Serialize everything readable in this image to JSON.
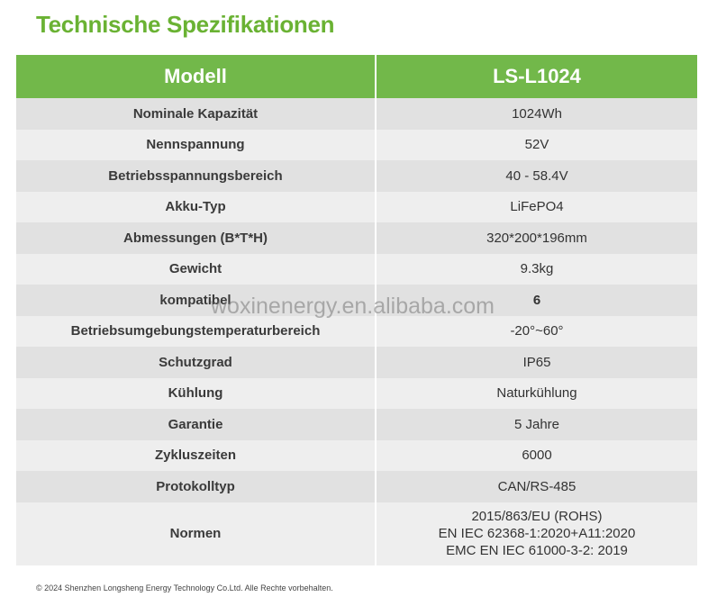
{
  "title": "Technische Spezifikationen",
  "table": {
    "header": {
      "label": "Modell",
      "value": "LS-L1024"
    },
    "rows": [
      {
        "label": "Nominale Kapazität",
        "value": "1024Wh"
      },
      {
        "label": "Nennspannung",
        "value": "52V"
      },
      {
        "label": "Betriebsspannungsbereich",
        "value": "40 - 58.4V"
      },
      {
        "label": "Akku-Typ",
        "value": "LiFePO4"
      },
      {
        "label": "Abmessungen (B*T*H)",
        "value": "320*200*196mm"
      },
      {
        "label": "Gewicht",
        "value": "9.3kg"
      },
      {
        "label": "kompatibel",
        "value": "6"
      },
      {
        "label": "Betriebsumgebungstemperaturbereich",
        "value": "-20°~60°"
      },
      {
        "label": "Schutzgrad",
        "value": "IP65"
      },
      {
        "label": "Kühlung",
        "value": "Naturkühlung"
      },
      {
        "label": "Garantie",
        "value": "5 Jahre"
      },
      {
        "label": "Zykluszeiten",
        "value": "6000"
      },
      {
        "label": "Protokolltyp",
        "value": "CAN/RS-485"
      },
      {
        "label": "Normen",
        "values": [
          "2015/863/EU (ROHS)",
          "EN IEC 62368-1:2020+A11:2020",
          "EMC  EN IEC 61000-3-2: 2019"
        ]
      }
    ]
  },
  "watermark": "woxinenergy.en.alibaba.com",
  "footer": "© 2024 Shenzhen Longsheng Energy Technology Co.Ltd. Alle Rechte vorbehalten."
}
